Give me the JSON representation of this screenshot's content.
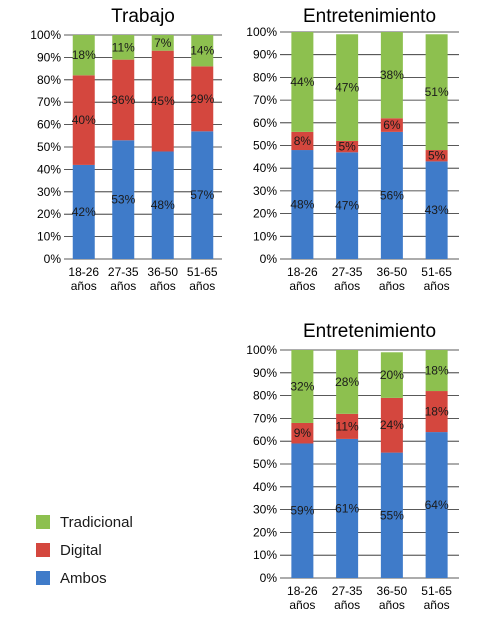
{
  "legend": [
    {
      "name": "Tradicional",
      "color": "#8dc04f"
    },
    {
      "name": "Digital",
      "color": "#d4473e"
    },
    {
      "name": "Ambos",
      "color": "#3f7bc9"
    }
  ],
  "chart_data": [
    {
      "type": "bar",
      "stacked": true,
      "title": "Trabajo",
      "categories": [
        "18-26 años",
        "27-35 años",
        "36-50 años",
        "51-65 años"
      ],
      "yticks": [
        "0%",
        "10%",
        "20%",
        "30%",
        "40%",
        "50%",
        "60%",
        "70%",
        "80%",
        "90%",
        "100%"
      ],
      "ylim": [
        0,
        100
      ],
      "series": [
        {
          "name": "Ambos",
          "color": "#3f7bc9",
          "values": [
            42,
            53,
            48,
            57
          ],
          "labels": [
            "42%",
            "53%",
            "48%",
            "57%"
          ]
        },
        {
          "name": "Digital",
          "color": "#d4473e",
          "values": [
            40,
            36,
            45,
            29
          ],
          "labels": [
            "40%",
            "36%",
            "45%",
            "29%"
          ]
        },
        {
          "name": "Tradicional",
          "color": "#8dc04f",
          "values": [
            18,
            11,
            7,
            14
          ],
          "labels": [
            "18%",
            "11%",
            "7%",
            "14%"
          ]
        }
      ]
    },
    {
      "type": "bar",
      "stacked": true,
      "title": "Entretenimiento",
      "categories": [
        "18-26 años",
        "27-35 años",
        "36-50 años",
        "51-65 años"
      ],
      "yticks": [
        "0%",
        "10%",
        "20%",
        "30%",
        "40%",
        "50%",
        "60%",
        "70%",
        "80%",
        "90%",
        "100%"
      ],
      "ylim": [
        0,
        100
      ],
      "series": [
        {
          "name": "Ambos",
          "color": "#3f7bc9",
          "values": [
            48,
            47,
            56,
            43
          ],
          "labels": [
            "48%",
            "47%",
            "56%",
            "43%"
          ]
        },
        {
          "name": "Digital",
          "color": "#d4473e",
          "values": [
            8,
            5,
            6,
            5
          ],
          "labels": [
            "8%",
            "5%",
            "6%",
            "5%"
          ]
        },
        {
          "name": "Tradicional",
          "color": "#8dc04f",
          "values": [
            44,
            47,
            38,
            51
          ],
          "labels": [
            "44%",
            "47%",
            "38%",
            "51%"
          ]
        }
      ]
    },
    {
      "type": "bar",
      "stacked": true,
      "title": "Entretenimiento",
      "categories": [
        "18-26 años",
        "27-35 años",
        "36-50 años",
        "51-65 años"
      ],
      "yticks": [
        "0%",
        "10%",
        "20%",
        "30%",
        "40%",
        "50%",
        "60%",
        "70%",
        "80%",
        "90%",
        "100%"
      ],
      "ylim": [
        0,
        100
      ],
      "series": [
        {
          "name": "Ambos",
          "color": "#3f7bc9",
          "values": [
            59,
            61,
            55,
            64
          ],
          "labels": [
            "59%",
            "61%",
            "55%",
            "64%"
          ]
        },
        {
          "name": "Digital",
          "color": "#d4473e",
          "values": [
            9,
            11,
            24,
            18
          ],
          "labels": [
            "9%",
            "11%",
            "24%",
            "18%"
          ]
        },
        {
          "name": "Tradicional",
          "color": "#8dc04f",
          "values": [
            32,
            28,
            20,
            18
          ],
          "labels": [
            "32%",
            "28%",
            "20%",
            "18%"
          ]
        }
      ]
    }
  ]
}
